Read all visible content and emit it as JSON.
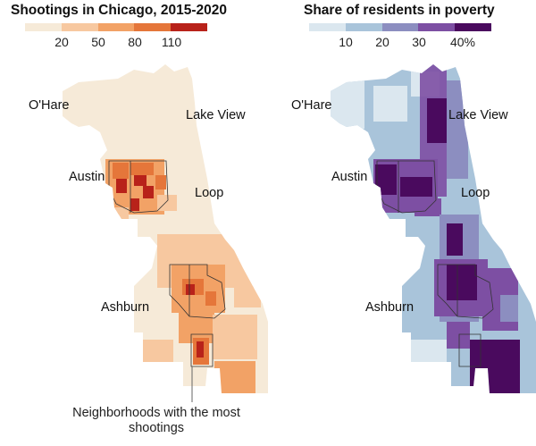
{
  "left_panel": {
    "title": "Shootings in Chicago, 2015-2020",
    "legend": {
      "colors": [
        "#f6ead8",
        "#f7c8a0",
        "#f2a266",
        "#e5763a",
        "#b8221a"
      ],
      "ticks": [
        "20",
        "50",
        "80",
        "110"
      ]
    },
    "labels": {
      "ohare": "O'Hare",
      "lake_view": "Lake View",
      "austin": "Austin",
      "loop": "Loop",
      "ashburn": "Ashburn"
    },
    "annotation": "Neighborhoods with the most shootings"
  },
  "right_panel": {
    "title": "Share of residents in poverty",
    "legend": {
      "colors": [
        "#dbe7ef",
        "#a9c4da",
        "#8c8ec0",
        "#7d4fa3",
        "#4a0a5e"
      ],
      "ticks": [
        "10",
        "20",
        "30",
        "40%"
      ]
    },
    "labels": {
      "ohare": "O'Hare",
      "lake_view": "Lake View",
      "austin": "Austin",
      "loop": "Loop",
      "ashburn": "Ashburn"
    }
  }
}
